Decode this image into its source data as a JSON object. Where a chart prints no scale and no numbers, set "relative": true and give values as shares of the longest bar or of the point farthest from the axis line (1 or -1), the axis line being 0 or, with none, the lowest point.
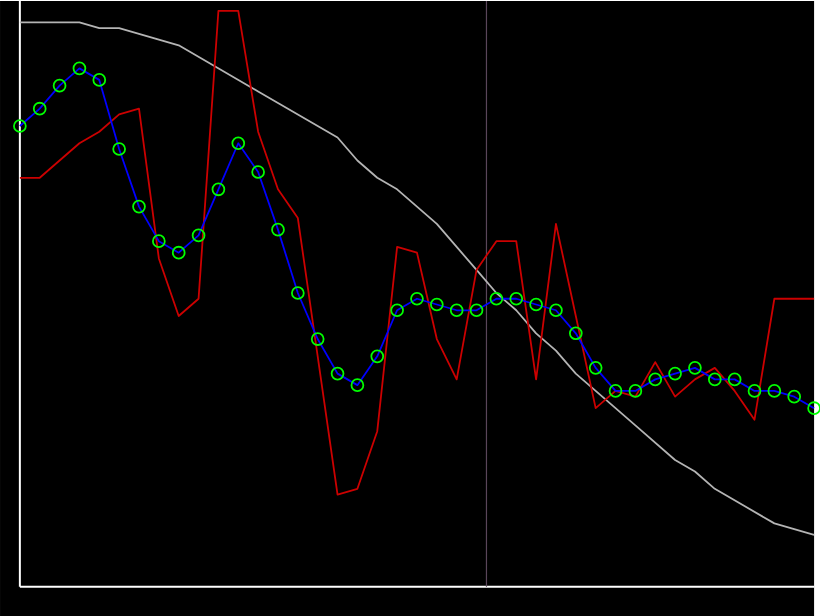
{
  "chart_data": {
    "type": "line",
    "relative": true,
    "categories": [
      null,
      null,
      null,
      null,
      null,
      null,
      null,
      null,
      null,
      null,
      null,
      null,
      null,
      null,
      null,
      null,
      null,
      null,
      null,
      null,
      null,
      null,
      null,
      null,
      null,
      null,
      null,
      null,
      null,
      null,
      null,
      null,
      null,
      null,
      null,
      null,
      null,
      null,
      null,
      null,
      null
    ],
    "series": [
      {
        "color": "#b4b4b4",
        "values": [
          0.98,
          0.98,
          0.98,
          0.98,
          0.97,
          0.97,
          0.96,
          0.95,
          0.94,
          0.92,
          0.9,
          0.88,
          0.86,
          0.84,
          0.82,
          0.8,
          0.78,
          0.74,
          0.71,
          0.69,
          0.66,
          0.63,
          0.59,
          0.55,
          0.51,
          0.48,
          0.44,
          0.41,
          0.37,
          0.34,
          0.31,
          0.28,
          0.25,
          0.22,
          0.2,
          0.17,
          0.15,
          0.13,
          0.11,
          0.1,
          0.09
        ]
      },
      {
        "color": "#cc0000",
        "values": [
          0.71,
          0.71,
          0.74,
          0.77,
          0.79,
          0.82,
          0.83,
          0.57,
          0.47,
          0.5,
          1.0,
          1.0,
          0.79,
          0.69,
          0.64,
          0.4,
          0.16,
          0.17,
          0.27,
          0.59,
          0.58,
          0.43,
          0.36,
          0.55,
          0.6,
          0.6,
          0.36,
          0.63,
          0.47,
          0.31,
          0.34,
          0.33,
          0.39,
          0.33,
          0.36,
          0.38,
          0.34,
          0.29,
          0.5,
          0.5,
          0.5
        ]
      },
      {
        "color": "#0000ff",
        "marker": "circle",
        "values": [
          0.8,
          0.83,
          0.87,
          0.9,
          0.88,
          0.76,
          0.66,
          0.6,
          0.58,
          0.61,
          0.69,
          0.77,
          0.72,
          0.62,
          0.51,
          0.43,
          0.37,
          0.35,
          0.4,
          0.48,
          0.5,
          0.49,
          0.48,
          0.48,
          0.5,
          0.5,
          0.49,
          0.48,
          0.44,
          0.38,
          0.34,
          0.34,
          0.36,
          0.37,
          0.38,
          0.36,
          0.36,
          0.34,
          0.34,
          0.33,
          0.31
        ]
      }
    ]
  }
}
